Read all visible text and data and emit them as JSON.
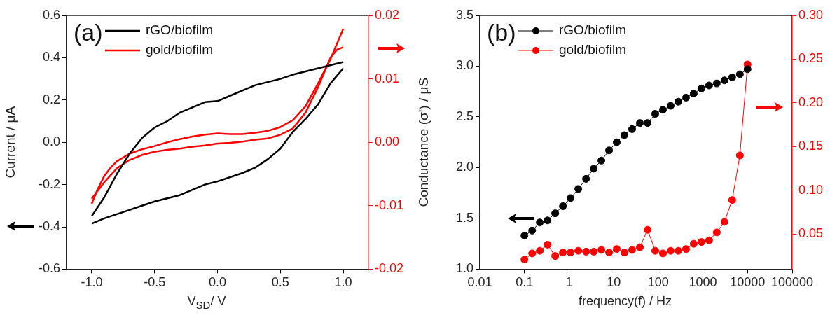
{
  "chart_data": [
    {
      "type": "line",
      "annotations": [
        "(a)"
      ],
      "xlabel": "V$_{SD}$/ V",
      "ylabel": "Current / μA",
      "legend": "top left",
      "marker": "none",
      "line_style": "solid",
      "grid": false,
      "xlim": [
        -1.2,
        1.2
      ],
      "xticks": [
        {
          "value": -1,
          "label": "-1.0"
        },
        {
          "value": -0.5,
          "label": "-0.5"
        },
        {
          "value": 0,
          "label": "0.0"
        },
        {
          "value": 0.5,
          "label": "0.5"
        },
        {
          "value": 1,
          "label": "1.0"
        }
      ],
      "ylim": [
        -0.6,
        0.6
      ],
      "yticks": [
        {
          "value": -0.6,
          "label": "-0.6"
        },
        {
          "value": -0.4,
          "label": "-0.4"
        },
        {
          "value": -0.2,
          "label": "-0.2"
        },
        {
          "value": 0,
          "label": "0.0"
        },
        {
          "value": 0.2,
          "label": "0.2"
        },
        {
          "value": 0.4,
          "label": "0.4"
        },
        {
          "value": 0.6,
          "label": "0.6"
        }
      ],
      "y2lim": [
        -0.02,
        0.02
      ],
      "y2ticks": [
        {
          "value": -0.02,
          "label": "-0.02"
        },
        {
          "value": -0.01,
          "label": "-0.01"
        },
        {
          "value": 0,
          "label": "0.00"
        },
        0.01,
        0.02
      ],
      "series": [
        {
          "name": "rGO/biofilm",
          "color": "#000000",
          "x": [
            -1,
            -0.9,
            -0.8,
            -0.7,
            -0.6,
            -0.5,
            -0.4,
            -0.3,
            -0.2,
            -0.1,
            0,
            0.1,
            0.2,
            0.3,
            0.4,
            0.5,
            0.6,
            0.7,
            0.8,
            0.9,
            1
          ],
          "values": [
            -0.35,
            -0.26,
            -0.15,
            -0.055,
            0.02,
            0.07,
            0.1,
            0.14,
            0.165,
            0.19,
            0.195,
            0.22,
            0.245,
            0.27,
            0.285,
            0.3,
            0.32,
            0.335,
            0.35,
            0.365,
            0.38
          ]
        },
        {
          "color": "#000000",
          "x": [
            -1,
            -0.9,
            -0.8,
            -0.7,
            -0.6,
            -0.5,
            -0.4,
            -0.3,
            -0.2,
            -0.1,
            0,
            0.1,
            0.2,
            0.3,
            0.4,
            0.5,
            0.6,
            0.7,
            0.8,
            0.9,
            1
          ],
          "values": [
            -0.385,
            -0.36,
            -0.34,
            -0.32,
            -0.3,
            -0.28,
            -0.265,
            -0.25,
            -0.225,
            -0.2,
            -0.185,
            -0.165,
            -0.145,
            -0.12,
            -0.08,
            -0.03,
            0.05,
            0.11,
            0.18,
            0.28,
            0.35
          ]
        },
        {
          "name": "gold/biofilm",
          "color": "#ff0000",
          "axis": "y2",
          "x": [
            -1,
            -0.95,
            -0.9,
            -0.85,
            -0.8,
            -0.7,
            -0.6,
            -0.5,
            -0.4,
            -0.3,
            -0.2,
            -0.1,
            0,
            0.1,
            0.2,
            0.3,
            0.4,
            0.5,
            0.6,
            0.7,
            0.8,
            0.9,
            1
          ],
          "values": [
            -0.0097,
            -0.0073,
            -0.0053,
            -0.004,
            -0.003,
            -0.0018,
            -0.0011,
            -0.0006,
            0,
            0.0005,
            0.0009,
            0.0012,
            0.0014,
            0.0013,
            0.0013,
            0.0015,
            0.0018,
            0.0024,
            0.0035,
            0.0057,
            0.0093,
            0.0132,
            0.0179
          ]
        },
        {
          "color": "#ff0000",
          "axis": "y2",
          "x": [
            -1,
            -0.9,
            -0.8,
            -0.7,
            -0.6,
            -0.5,
            -0.4,
            -0.3,
            -0.2,
            -0.1,
            0,
            0.1,
            0.2,
            0.3,
            0.4,
            0.5,
            0.6,
            0.7,
            0.8,
            0.9,
            0.95,
            1
          ],
          "values": [
            -0.0089,
            -0.0063,
            -0.0041,
            -0.0028,
            -0.002,
            -0.0015,
            -0.0012,
            -0.001,
            -0.0007,
            -0.0005,
            -0.0002,
            -0.0001,
            0.0001,
            0.0004,
            0.0006,
            0.0012,
            0.0022,
            0.0047,
            0.0087,
            0.0134,
            0.0146,
            0.015
          ]
        }
      ]
    },
    {
      "type": "line",
      "annotations": [
        "(b)"
      ],
      "xlabel": "frequency(f) / Hz",
      "ylabel": "Conductance (σ') / μS",
      "legend": "top left",
      "marker": "circle",
      "line_style": "solid",
      "grid": false,
      "log": "x",
      "xlim": [
        0.01,
        100000
      ],
      "xticks": [
        0.01,
        0.1,
        1,
        10,
        100,
        1000,
        10000,
        100000
      ],
      "ylim": [
        1,
        3.5
      ],
      "yticks": [
        {
          "value": 1,
          "label": "1.0"
        },
        1.5,
        {
          "value": 2,
          "label": "2.0"
        },
        2.5,
        {
          "value": 3,
          "label": "3.0"
        },
        3.5
      ],
      "y2lim": [
        0.01,
        0.3
      ],
      "y2ticks": [
        0.05,
        {
          "value": 0.1,
          "label": "0.10"
        },
        0.15,
        {
          "value": 0.2,
          "label": "0.20"
        },
        0.25,
        {
          "value": 0.3,
          "label": "0.30"
        }
      ],
      "x": [
        0.1,
        0.149,
        0.221,
        0.329,
        0.489,
        0.728,
        1.08,
        1.61,
        2.4,
        3.56,
        5.3,
        7.88,
        11.7,
        17.4,
        25.9,
        38.6,
        57.4,
        85.3,
        127,
        189,
        281,
        418,
        621,
        924,
        1374,
        2043,
        3039,
        4520,
        6723,
        10000
      ],
      "series": [
        {
          "name": "rGO/biofilm",
          "color": "#000000",
          "values": [
            1.33,
            1.38,
            1.46,
            1.48,
            1.55,
            1.62,
            1.7,
            1.79,
            1.89,
            1.99,
            2.07,
            2.17,
            2.25,
            2.32,
            2.38,
            2.44,
            2.44,
            2.53,
            2.57,
            2.61,
            2.65,
            2.69,
            2.73,
            2.78,
            2.81,
            2.83,
            2.86,
            2.89,
            2.92,
            2.97
          ]
        },
        {
          "name": "gold/biofilm",
          "color": "#ff0000",
          "axis": "y2",
          "values": [
            0.021,
            0.028,
            0.031,
            0.038,
            0.025,
            0.029,
            0.029,
            0.031,
            0.03,
            0.03,
            0.032,
            0.029,
            0.033,
            0.029,
            0.032,
            0.035,
            0.055,
            0.031,
            0.028,
            0.031,
            0.031,
            0.033,
            0.039,
            0.041,
            0.043,
            0.052,
            0.064,
            0.089,
            0.14,
            0.244
          ]
        }
      ]
    }
  ]
}
